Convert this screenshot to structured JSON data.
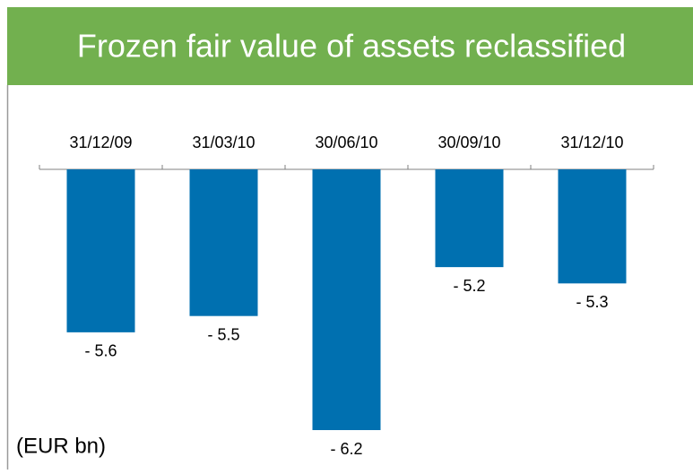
{
  "chart_data": {
    "type": "bar",
    "title": "Frozen fair value of assets reclassified",
    "annotation": "(EUR bn)",
    "categories": [
      "31/12/09",
      "31/03/10",
      "30/06/10",
      "30/09/10",
      "31/12/10"
    ],
    "values": [
      -5.6,
      -5.5,
      -6.2,
      -5.2,
      -5.3
    ],
    "value_labels": [
      "- 5.6",
      "- 5.5",
      "- 6.2",
      "- 5.2",
      "- 5.3"
    ],
    "color": "#0070b0",
    "ylim": [
      -4.6,
      -6.2
    ]
  }
}
